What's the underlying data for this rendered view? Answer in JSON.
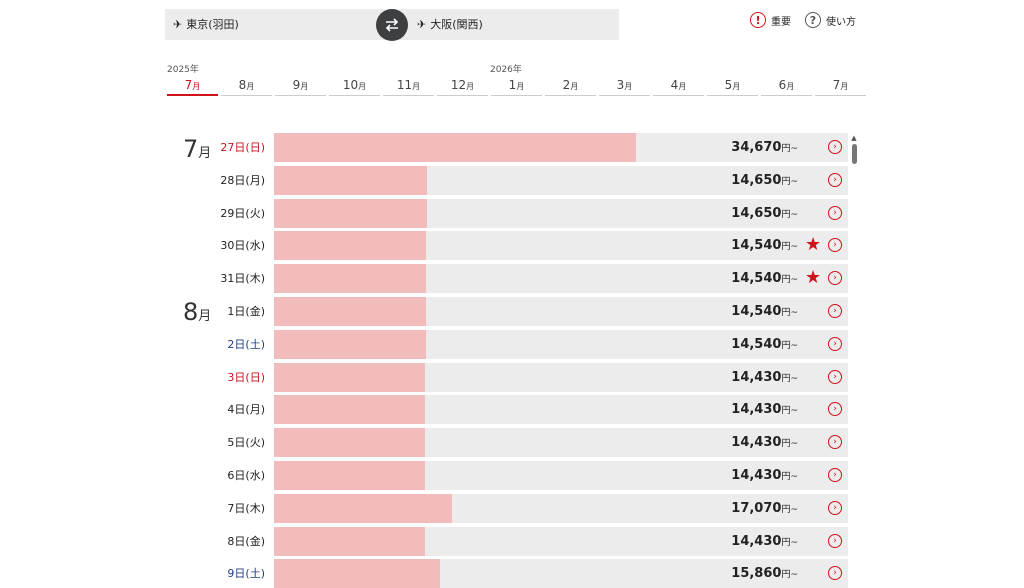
{
  "route": {
    "from": "東京(羽田)",
    "to": "大阪(関西)"
  },
  "links": {
    "important": "重要",
    "howto": "使い方"
  },
  "years": [
    "2025年",
    "2026年"
  ],
  "month_tabs": [
    {
      "n": "7",
      "u": "月",
      "active": true
    },
    {
      "n": "8",
      "u": "月"
    },
    {
      "n": "9",
      "u": "月"
    },
    {
      "n": "10",
      "u": "月"
    },
    {
      "n": "11",
      "u": "月"
    },
    {
      "n": "12",
      "u": "月"
    },
    {
      "n": "1",
      "u": "月"
    },
    {
      "n": "2",
      "u": "月"
    },
    {
      "n": "3",
      "u": "月"
    },
    {
      "n": "4",
      "u": "月"
    },
    {
      "n": "5",
      "u": "月"
    },
    {
      "n": "6",
      "u": "月"
    },
    {
      "n": "7",
      "u": "月"
    }
  ],
  "month_labels": [
    {
      "n": "7",
      "u": "月"
    },
    {
      "n": "8",
      "u": "月"
    }
  ],
  "fares": [
    {
      "date": "27日(日)",
      "day": "sun",
      "price": "34,670",
      "unit": "円~",
      "value": 34670,
      "star": false
    },
    {
      "date": "28日(月)",
      "day": "",
      "price": "14,650",
      "unit": "円~",
      "value": 14650,
      "star": false
    },
    {
      "date": "29日(火)",
      "day": "",
      "price": "14,650",
      "unit": "円~",
      "value": 14650,
      "star": false
    },
    {
      "date": "30日(水)",
      "day": "",
      "price": "14,540",
      "unit": "円~",
      "value": 14540,
      "star": true
    },
    {
      "date": "31日(木)",
      "day": "",
      "price": "14,540",
      "unit": "円~",
      "value": 14540,
      "star": true
    },
    {
      "date": "1日(金)",
      "day": "",
      "price": "14,540",
      "unit": "円~",
      "value": 14540,
      "star": false
    },
    {
      "date": "2日(土)",
      "day": "sat",
      "price": "14,540",
      "unit": "円~",
      "value": 14540,
      "star": false
    },
    {
      "date": "3日(日)",
      "day": "sun",
      "price": "14,430",
      "unit": "円~",
      "value": 14430,
      "star": false
    },
    {
      "date": "4日(月)",
      "day": "",
      "price": "14,430",
      "unit": "円~",
      "value": 14430,
      "star": false
    },
    {
      "date": "5日(火)",
      "day": "",
      "price": "14,430",
      "unit": "円~",
      "value": 14430,
      "star": false
    },
    {
      "date": "6日(水)",
      "day": "",
      "price": "14,430",
      "unit": "円~",
      "value": 14430,
      "star": false
    },
    {
      "date": "7日(木)",
      "day": "",
      "price": "17,070",
      "unit": "円~",
      "value": 17070,
      "star": false
    },
    {
      "date": "8日(金)",
      "day": "",
      "price": "14,430",
      "unit": "円~",
      "value": 14430,
      "star": false
    },
    {
      "date": "9日(土)",
      "day": "sat",
      "price": "15,860",
      "unit": "円~",
      "value": 15860,
      "star": false
    }
  ],
  "bar_max": 55000
}
